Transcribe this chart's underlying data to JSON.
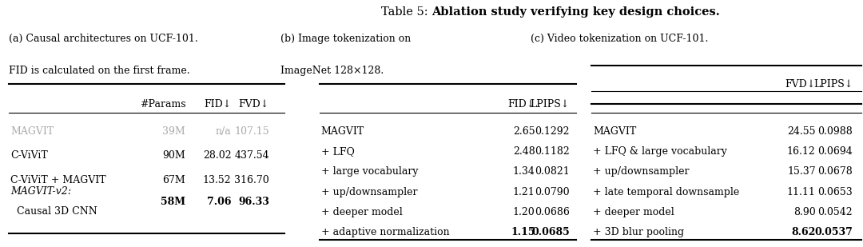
{
  "background_color": "#ffffff",
  "title_prefix": "Table 5: ",
  "title_bold": "Ablation study verifying key design choices",
  "title_end": ".",
  "sub_a_line1": "(a) Causal architectures on UCF-101.",
  "sub_a_line2": "FID is calculated on the first frame.",
  "sub_b_line1": "(b) Image tokenization on",
  "sub_b_line2": "ImageNet 128×128.",
  "sub_c_line1": "(c) Video tokenization on UCF-101.",
  "table_a": {
    "col_labels": [
      "#Params",
      "FID↓",
      "FVD↓"
    ],
    "rows": [
      {
        "name": "MAGVIT",
        "italic": false,
        "gray": true,
        "params": "39M",
        "v1": "n/a",
        "v2": "107.15",
        "bold_v": false
      },
      {
        "name": "C-ViViT",
        "italic": false,
        "gray": false,
        "params": "90M",
        "v1": "28.02",
        "v2": "437.54",
        "bold_v": false
      },
      {
        "name": "C-ViViT + MAGVIT",
        "italic": false,
        "gray": false,
        "params": "67M",
        "v1": "13.52",
        "v2": "316.70",
        "bold_v": false
      },
      {
        "name": "MAGVIT-v2:",
        "italic": true,
        "gray": false,
        "params": "58M",
        "v1": "7.06",
        "v2": "96.33",
        "bold_v": true,
        "name2": "  Causal 3D CNN"
      }
    ]
  },
  "table_b": {
    "col_labels": [
      "FID↓",
      "LPIPS↓"
    ],
    "rows": [
      {
        "name": "MAGVIT",
        "v1": "2.65",
        "v2": "0.1292",
        "bold_v": false
      },
      {
        "name": "+ LFQ",
        "v1": "2.48",
        "v2": "0.1182",
        "bold_v": false
      },
      {
        "name": "+ large vocabulary",
        "v1": "1.34",
        "v2": "0.0821",
        "bold_v": false
      },
      {
        "name": "+ up/downsampler",
        "v1": "1.21",
        "v2": "0.0790",
        "bold_v": false
      },
      {
        "name": "+ deeper model",
        "v1": "1.20",
        "v2": "0.0686",
        "bold_v": false
      },
      {
        "name": "+ adaptive normalization",
        "v1": "1.15",
        "v2": "0.0685",
        "bold_v": true
      }
    ]
  },
  "table_c": {
    "col_labels": [
      "FVD↓",
      "LPIPS↓"
    ],
    "rows": [
      {
        "name": "MAGVIT",
        "v1": "24.55",
        "v2": "0.0988",
        "bold_v": false
      },
      {
        "name": "+ LFQ & large vocabulary",
        "v1": "16.12",
        "v2": "0.0694",
        "bold_v": false
      },
      {
        "name": "+ up/downsampler",
        "v1": "15.37",
        "v2": "0.0678",
        "bold_v": false
      },
      {
        "name": "+ late temporal downsample",
        "v1": "11.11",
        "v2": "0.0653",
        "bold_v": false
      },
      {
        "name": "+ deeper model",
        "v1": "8.90",
        "v2": "0.0542",
        "bold_v": false
      },
      {
        "name": "+ 3D blur pooling",
        "v1": "8.62",
        "v2": "0.0537",
        "bold_v": true
      }
    ]
  }
}
